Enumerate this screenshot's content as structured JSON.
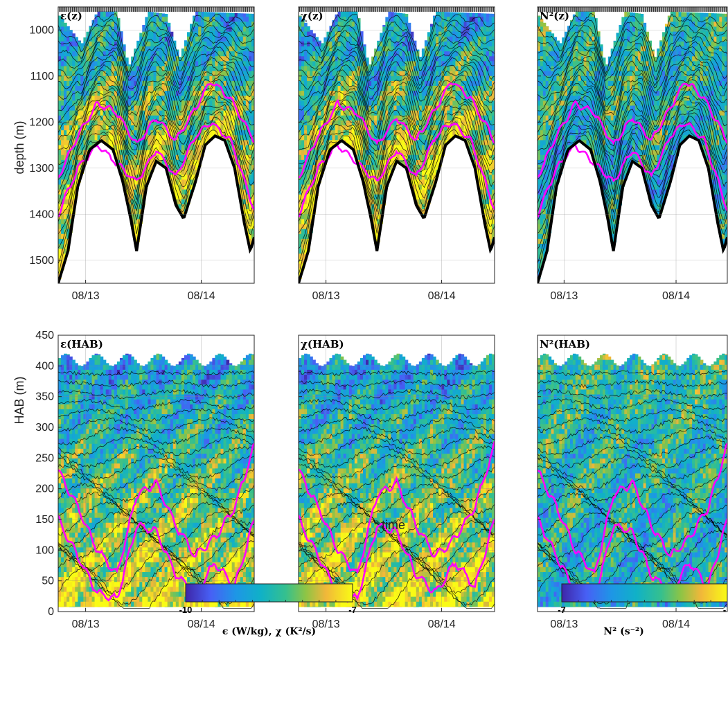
{
  "chart_data": {
    "type": "heatmap",
    "panels": [
      {
        "id": "eps_z",
        "title": "ε(z)",
        "field": "eps",
        "mode": "z",
        "ylabel": "depth (m)",
        "yticks": [
          1000,
          1100,
          1200,
          1300,
          1400,
          1500
        ],
        "ylim": [
          950,
          1550
        ],
        "xticks": [
          "08/13",
          "08/14"
        ]
      },
      {
        "id": "chi_z",
        "title": "χ(z)",
        "field": "chi",
        "mode": "z",
        "ylabel": "",
        "yticks": [],
        "ylim": [
          950,
          1550
        ],
        "xticks": [
          "08/13",
          "08/14"
        ]
      },
      {
        "id": "n2_z",
        "title": "N²(z)",
        "field": "n2",
        "mode": "z",
        "ylabel": "",
        "yticks": [],
        "ylim": [
          950,
          1550
        ],
        "xticks": [
          "08/13",
          "08/14"
        ]
      },
      {
        "id": "eps_hab",
        "title": "ε(HAB)",
        "field": "eps",
        "mode": "hab",
        "ylabel": "HAB (m)",
        "yticks": [
          0,
          50,
          100,
          150,
          200,
          250,
          300,
          350,
          400,
          450
        ],
        "ylim": [
          0,
          450
        ],
        "xticks": [
          "08/13",
          "08/14"
        ]
      },
      {
        "id": "chi_hab",
        "title": "χ(HAB)",
        "field": "chi",
        "mode": "hab",
        "ylabel": "",
        "yticks": [],
        "ylim": [
          0,
          450
        ],
        "xticks": [
          "08/13",
          "08/14"
        ],
        "xlabel": "time"
      },
      {
        "id": "n2_hab",
        "title": "N²(HAB)",
        "field": "n2",
        "mode": "hab",
        "ylabel": "",
        "yticks": [],
        "ylim": [
          0,
          450
        ],
        "xticks": [
          "08/13",
          "08/14"
        ]
      }
    ],
    "colorbars": [
      {
        "id": "cb_mix",
        "label": "ϵ (W/kg), χ (K²/s)",
        "min": -10,
        "max": -7,
        "colormap": "parula"
      },
      {
        "id": "cb_n2",
        "label": "N² (s⁻²)",
        "min": -7,
        "max": "-",
        "colormap": "parula"
      }
    ],
    "bathymetry_depth_m": [
      [
        0.0,
        1550
      ],
      [
        0.05,
        1480
      ],
      [
        0.1,
        1340
      ],
      [
        0.16,
        1260
      ],
      [
        0.22,
        1240
      ],
      [
        0.28,
        1260
      ],
      [
        0.33,
        1330
      ],
      [
        0.37,
        1410
      ],
      [
        0.4,
        1480
      ],
      [
        0.45,
        1340
      ],
      [
        0.5,
        1285
      ],
      [
        0.55,
        1300
      ],
      [
        0.6,
        1380
      ],
      [
        0.64,
        1410
      ],
      [
        0.7,
        1330
      ],
      [
        0.75,
        1250
      ],
      [
        0.8,
        1230
      ],
      [
        0.85,
        1240
      ],
      [
        0.9,
        1300
      ],
      [
        0.95,
        1420
      ],
      [
        0.98,
        1480
      ],
      [
        1.0,
        1450
      ]
    ],
    "isopycnal_upper_depth_m": [
      [
        0.0,
        1320
      ],
      [
        0.1,
        1230
      ],
      [
        0.2,
        1160
      ],
      [
        0.3,
        1180
      ],
      [
        0.4,
        1250
      ],
      [
        0.5,
        1190
      ],
      [
        0.6,
        1240
      ],
      [
        0.7,
        1170
      ],
      [
        0.78,
        1110
      ],
      [
        0.88,
        1150
      ],
      [
        1.0,
        1240
      ]
    ],
    "isopycnal_lower_depth_m": [
      [
        0.0,
        1400
      ],
      [
        0.1,
        1300
      ],
      [
        0.2,
        1250
      ],
      [
        0.3,
        1290
      ],
      [
        0.4,
        1330
      ],
      [
        0.5,
        1260
      ],
      [
        0.6,
        1320
      ],
      [
        0.7,
        1230
      ],
      [
        0.78,
        1200
      ],
      [
        0.88,
        1240
      ],
      [
        1.0,
        1390
      ]
    ],
    "isopycnal_upper_hab_m": [
      [
        0.0,
        230
      ],
      [
        0.1,
        170
      ],
      [
        0.2,
        100
      ],
      [
        0.3,
        60
      ],
      [
        0.4,
        190
      ],
      [
        0.5,
        210
      ],
      [
        0.6,
        140
      ],
      [
        0.7,
        90
      ],
      [
        0.8,
        120
      ],
      [
        0.9,
        170
      ],
      [
        1.0,
        270
      ]
    ],
    "isopycnal_lower_hab_m": [
      [
        0.0,
        150
      ],
      [
        0.1,
        90
      ],
      [
        0.2,
        30
      ],
      [
        0.3,
        20
      ],
      [
        0.4,
        140
      ],
      [
        0.5,
        130
      ],
      [
        0.6,
        60
      ],
      [
        0.7,
        30
      ],
      [
        0.8,
        80
      ],
      [
        0.9,
        40
      ],
      [
        1.0,
        150
      ]
    ],
    "profile_top_hab_m": 410,
    "grid": true
  }
}
